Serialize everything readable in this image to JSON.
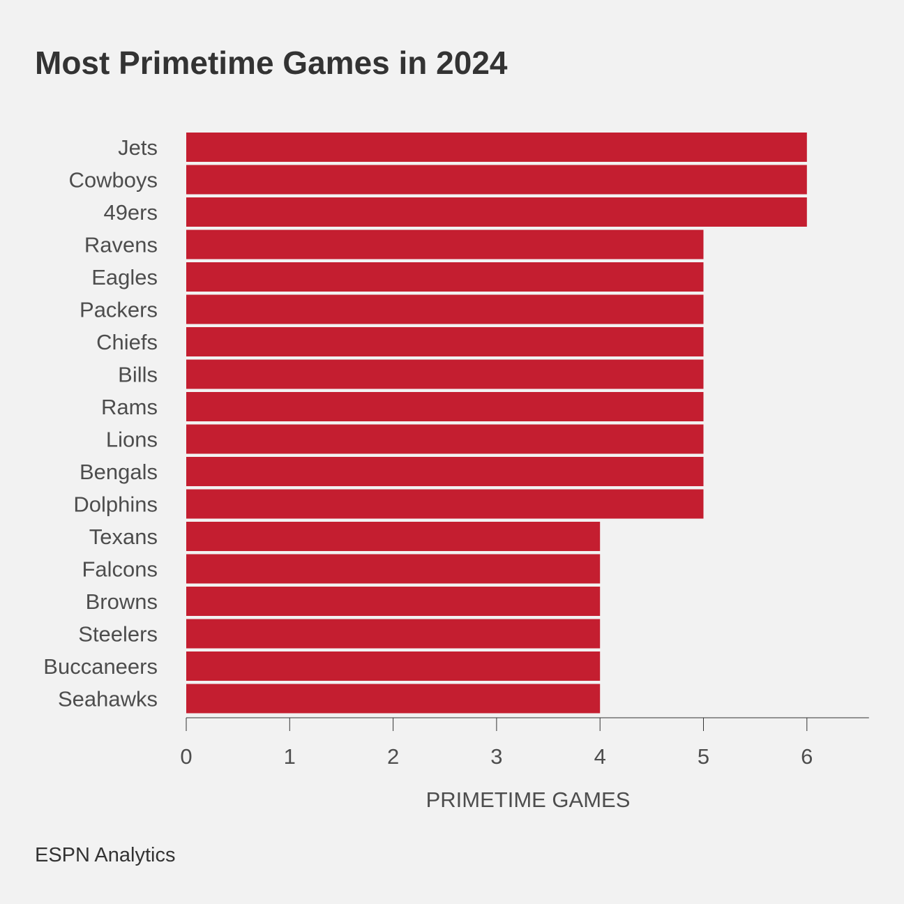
{
  "title": "Most Primetime Games in 2024",
  "source": "ESPN Analytics",
  "colors": {
    "bar": "#c41e30",
    "background": "#f2f2f2",
    "text": "#4d4d4d"
  },
  "chart_data": {
    "type": "bar",
    "orientation": "horizontal",
    "title": "Most Primetime Games in 2024",
    "xlabel": "PRIMETIME GAMES",
    "ylabel": "",
    "categories": [
      "Jets",
      "Cowboys",
      "49ers",
      "Ravens",
      "Eagles",
      "Packers",
      "Chiefs",
      "Bills",
      "Rams",
      "Lions",
      "Bengals",
      "Dolphins",
      "Texans",
      "Falcons",
      "Browns",
      "Steelers",
      "Buccaneers",
      "Seahawks"
    ],
    "values": [
      6,
      6,
      6,
      5,
      5,
      5,
      5,
      5,
      5,
      5,
      5,
      5,
      4,
      4,
      4,
      4,
      4,
      4
    ],
    "xlim": [
      0,
      6.6
    ],
    "xticks": [
      "0",
      "1",
      "2",
      "3",
      "4",
      "5",
      "6"
    ],
    "grid": false,
    "legend": "none"
  }
}
